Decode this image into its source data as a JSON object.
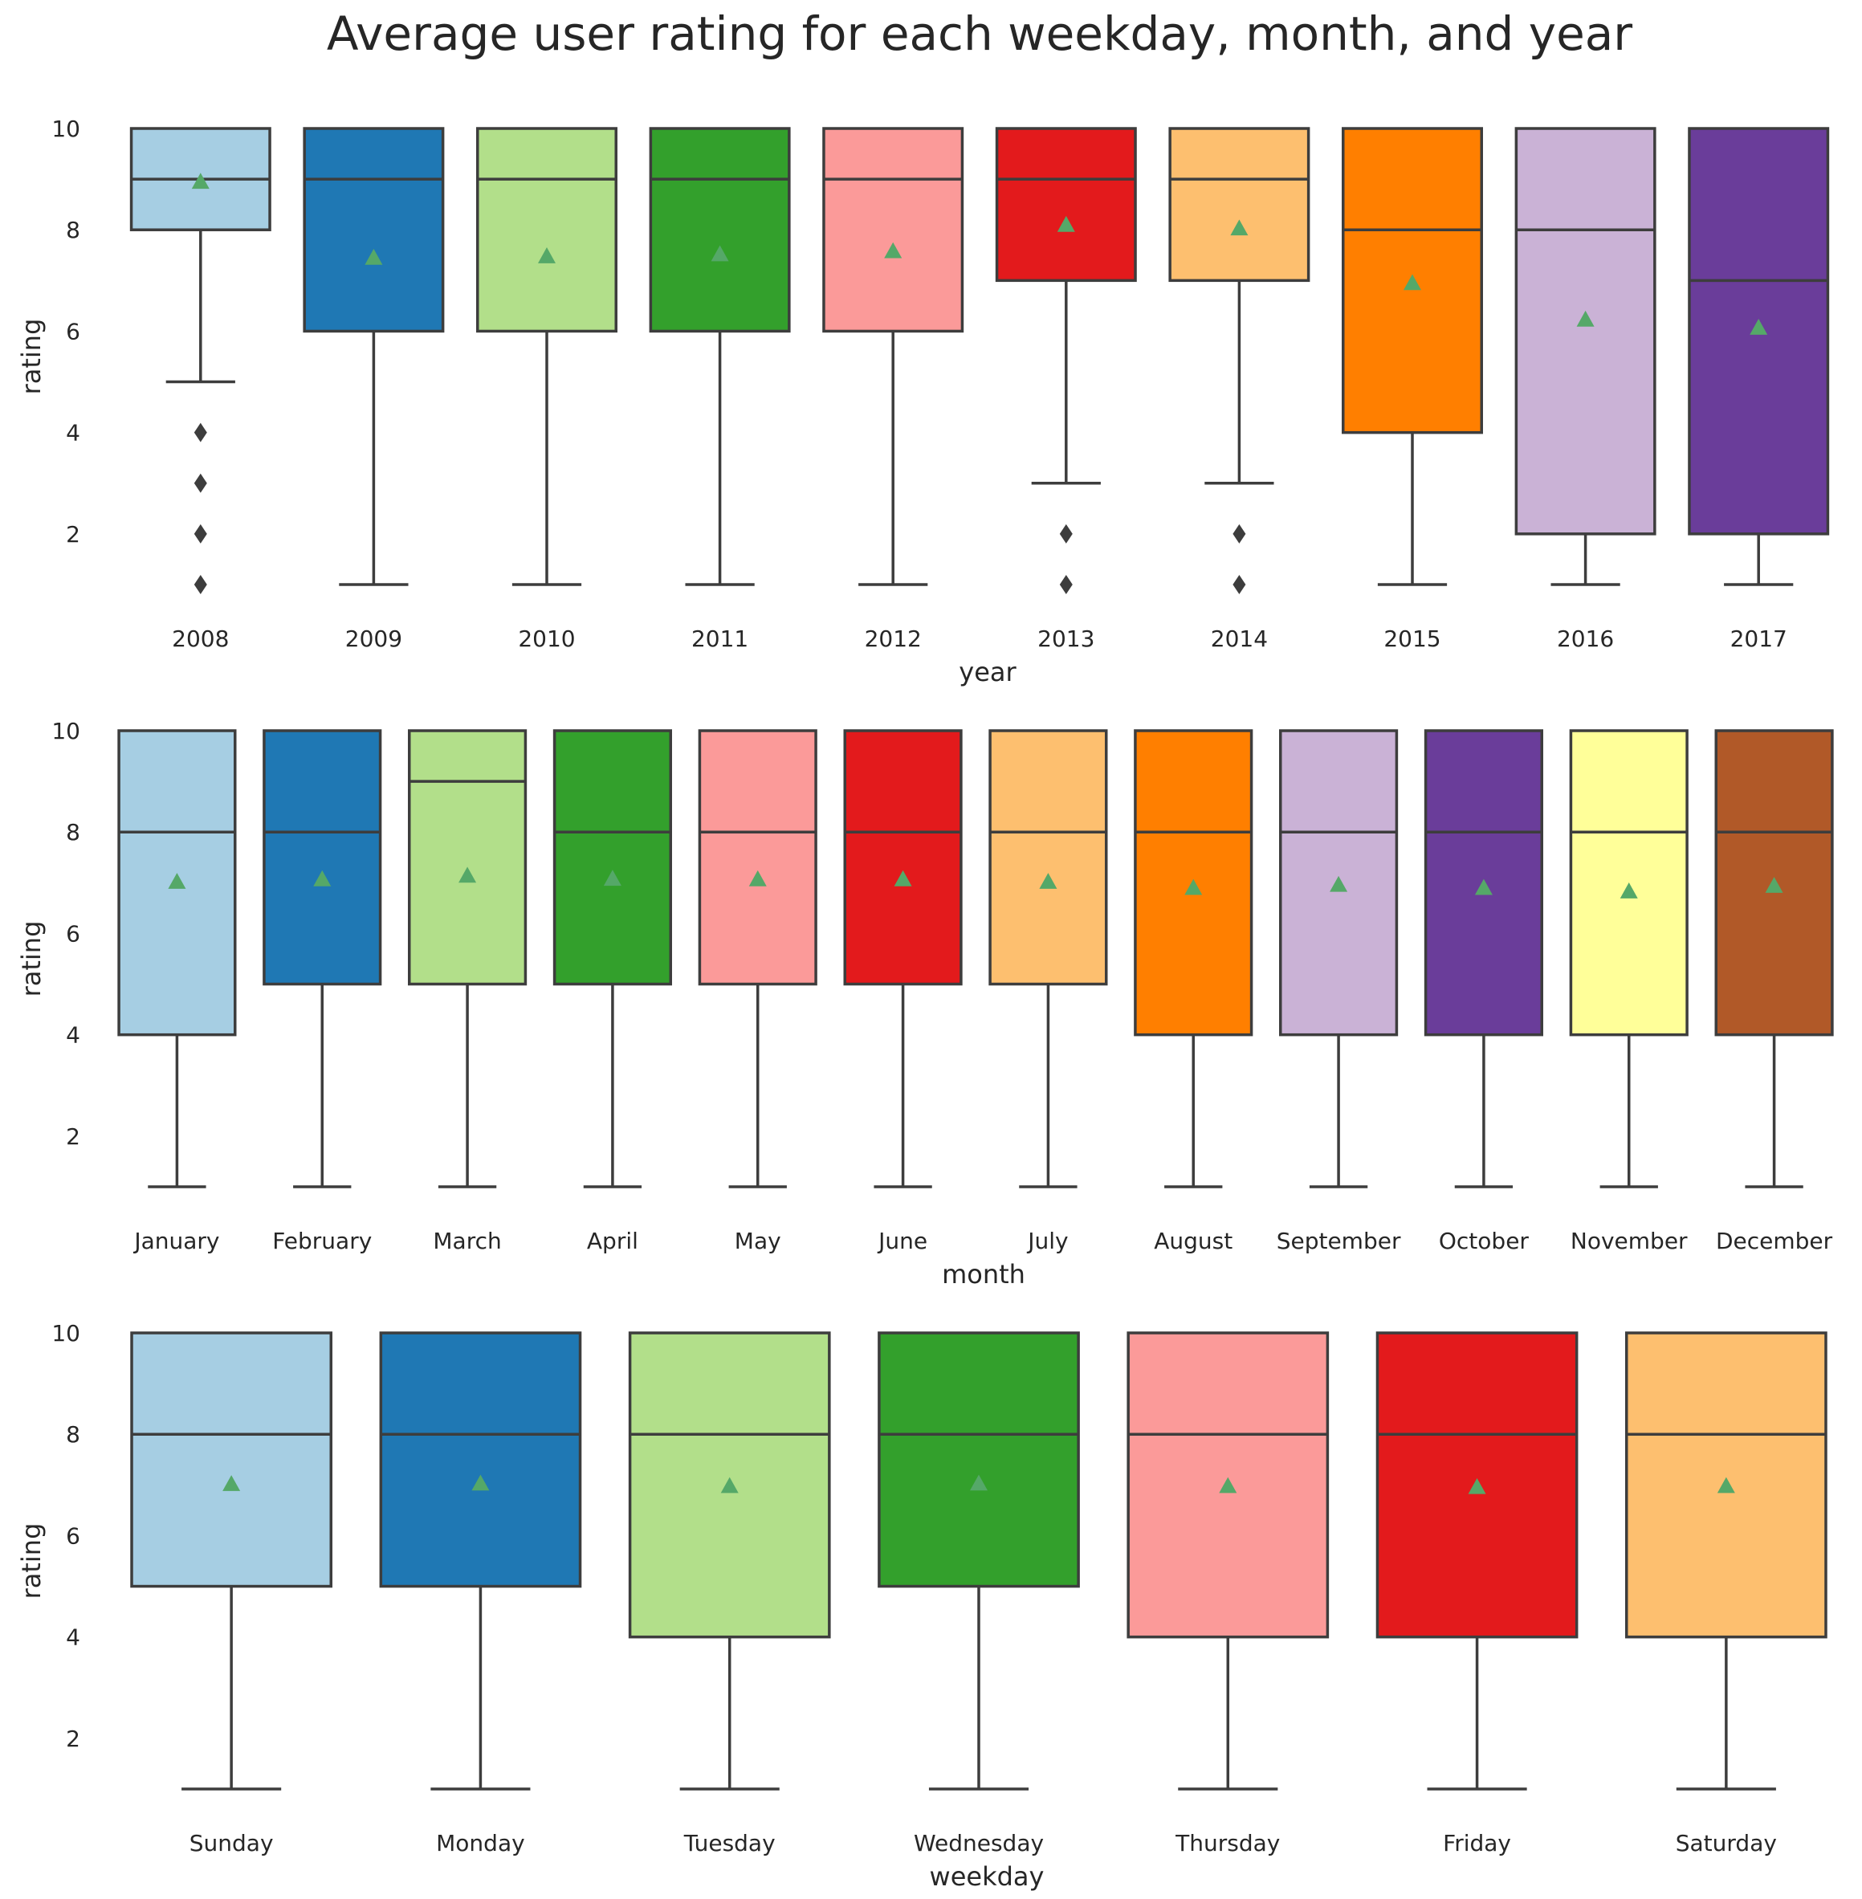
{
  "title": "Average user rating for each weekday, month, and year",
  "chart_data": [
    {
      "type": "box",
      "xlabel": "year",
      "ylabel": "rating",
      "ylim": [
        0.5,
        10
      ],
      "yticks": [
        2,
        4,
        6,
        8,
        10
      ],
      "categories": [
        "2008",
        "2009",
        "2010",
        "2011",
        "2012",
        "2013",
        "2014",
        "2015",
        "2016",
        "2017"
      ],
      "colors": [
        "#a6cee3",
        "#1f78b4",
        "#b2df8a",
        "#33a02c",
        "#fb9a99",
        "#e31a1c",
        "#fdbf6f",
        "#ff7f00",
        "#cab2d6",
        "#6a3d9a"
      ],
      "boxes": [
        {
          "whislo": 5,
          "q1": 8,
          "med": 9,
          "q3": 10,
          "whishi": 10,
          "mean": 8.95,
          "fliers": [
            1,
            2,
            3,
            4
          ]
        },
        {
          "whislo": 1,
          "q1": 6,
          "med": 9,
          "q3": 10,
          "whishi": 10,
          "mean": 7.45,
          "fliers": []
        },
        {
          "whislo": 1,
          "q1": 6,
          "med": 9,
          "q3": 10,
          "whishi": 10,
          "mean": 7.48,
          "fliers": []
        },
        {
          "whislo": 1,
          "q1": 6,
          "med": 9,
          "q3": 10,
          "whishi": 10,
          "mean": 7.52,
          "fliers": []
        },
        {
          "whislo": 1,
          "q1": 6,
          "med": 9,
          "q3": 10,
          "whishi": 10,
          "mean": 7.58,
          "fliers": []
        },
        {
          "whislo": 3,
          "q1": 7,
          "med": 9,
          "q3": 10,
          "whishi": 10,
          "mean": 8.1,
          "fliers": [
            1,
            2
          ]
        },
        {
          "whislo": 3,
          "q1": 7,
          "med": 9,
          "q3": 10,
          "whishi": 10,
          "mean": 8.03,
          "fliers": [
            1,
            2
          ]
        },
        {
          "whislo": 1,
          "q1": 4,
          "med": 8,
          "q3": 10,
          "whishi": 10,
          "mean": 6.95,
          "fliers": []
        },
        {
          "whislo": 1,
          "q1": 2,
          "med": 8,
          "q3": 10,
          "whishi": 10,
          "mean": 6.23,
          "fliers": []
        },
        {
          "whislo": 1,
          "q1": 2,
          "med": 7,
          "q3": 10,
          "whishi": 10,
          "mean": 6.07,
          "fliers": []
        }
      ]
    },
    {
      "type": "box",
      "xlabel": "month",
      "ylabel": "rating",
      "ylim": [
        0.5,
        10
      ],
      "yticks": [
        2,
        4,
        6,
        8,
        10
      ],
      "categories": [
        "January",
        "February",
        "March",
        "April",
        "May",
        "June",
        "July",
        "August",
        "September",
        "October",
        "November",
        "December"
      ],
      "colors": [
        "#a6cee3",
        "#1f78b4",
        "#b2df8a",
        "#33a02c",
        "#fb9a99",
        "#e31a1c",
        "#fdbf6f",
        "#ff7f00",
        "#cab2d6",
        "#6a3d9a",
        "#ffff99",
        "#b15928"
      ],
      "boxes": [
        {
          "whislo": 1,
          "q1": 4,
          "med": 8,
          "q3": 10,
          "whishi": 10,
          "mean": 7.02,
          "fliers": []
        },
        {
          "whislo": 1,
          "q1": 5,
          "med": 8,
          "q3": 10,
          "whishi": 10,
          "mean": 7.07,
          "fliers": []
        },
        {
          "whislo": 1,
          "q1": 5,
          "med": 9,
          "q3": 10,
          "whishi": 10,
          "mean": 7.14,
          "fliers": []
        },
        {
          "whislo": 1,
          "q1": 5,
          "med": 8,
          "q3": 10,
          "whishi": 10,
          "mean": 7.08,
          "fliers": []
        },
        {
          "whislo": 1,
          "q1": 5,
          "med": 8,
          "q3": 10,
          "whishi": 10,
          "mean": 7.07,
          "fliers": []
        },
        {
          "whislo": 1,
          "q1": 5,
          "med": 8,
          "q3": 10,
          "whishi": 10,
          "mean": 7.07,
          "fliers": []
        },
        {
          "whislo": 1,
          "q1": 5,
          "med": 8,
          "q3": 10,
          "whishi": 10,
          "mean": 7.02,
          "fliers": []
        },
        {
          "whislo": 1,
          "q1": 4,
          "med": 8,
          "q3": 10,
          "whishi": 10,
          "mean": 6.9,
          "fliers": []
        },
        {
          "whislo": 1,
          "q1": 4,
          "med": 8,
          "q3": 10,
          "whishi": 10,
          "mean": 6.96,
          "fliers": []
        },
        {
          "whislo": 1,
          "q1": 4,
          "med": 8,
          "q3": 10,
          "whishi": 10,
          "mean": 6.9,
          "fliers": []
        },
        {
          "whislo": 1,
          "q1": 4,
          "med": 8,
          "q3": 10,
          "whishi": 10,
          "mean": 6.83,
          "fliers": []
        },
        {
          "whislo": 1,
          "q1": 4,
          "med": 8,
          "q3": 10,
          "whishi": 10,
          "mean": 6.94,
          "fliers": []
        }
      ]
    },
    {
      "type": "box",
      "xlabel": "weekday",
      "ylabel": "rating",
      "ylim": [
        0.5,
        10
      ],
      "yticks": [
        2,
        4,
        6,
        8,
        10
      ],
      "categories": [
        "Sunday",
        "Monday",
        "Tuesday",
        "Wednesday",
        "Thursday",
        "Friday",
        "Saturday"
      ],
      "colors": [
        "#a6cee3",
        "#1f78b4",
        "#b2df8a",
        "#33a02c",
        "#fb9a99",
        "#e31a1c",
        "#fdbf6f"
      ],
      "boxes": [
        {
          "whislo": 1,
          "q1": 5,
          "med": 8,
          "q3": 10,
          "whishi": 10,
          "mean": 7.02,
          "fliers": []
        },
        {
          "whislo": 1,
          "q1": 5,
          "med": 8,
          "q3": 10,
          "whishi": 10,
          "mean": 7.03,
          "fliers": []
        },
        {
          "whislo": 1,
          "q1": 4,
          "med": 8,
          "q3": 10,
          "whishi": 10,
          "mean": 6.98,
          "fliers": []
        },
        {
          "whislo": 1,
          "q1": 5,
          "med": 8,
          "q3": 10,
          "whishi": 10,
          "mean": 7.03,
          "fliers": []
        },
        {
          "whislo": 1,
          "q1": 4,
          "med": 8,
          "q3": 10,
          "whishi": 10,
          "mean": 6.98,
          "fliers": []
        },
        {
          "whislo": 1,
          "q1": 4,
          "med": 8,
          "q3": 10,
          "whishi": 10,
          "mean": 6.96,
          "fliers": []
        },
        {
          "whislo": 1,
          "q1": 4,
          "med": 8,
          "q3": 10,
          "whishi": 10,
          "mean": 6.98,
          "fliers": []
        }
      ]
    }
  ],
  "style": {
    "line_color": "#3d3d3d",
    "mean_marker_color": "#55a868",
    "flier_color": "#3d3d3d",
    "mean_marker": "triangle",
    "flier_marker": "diamond",
    "grid": false
  }
}
